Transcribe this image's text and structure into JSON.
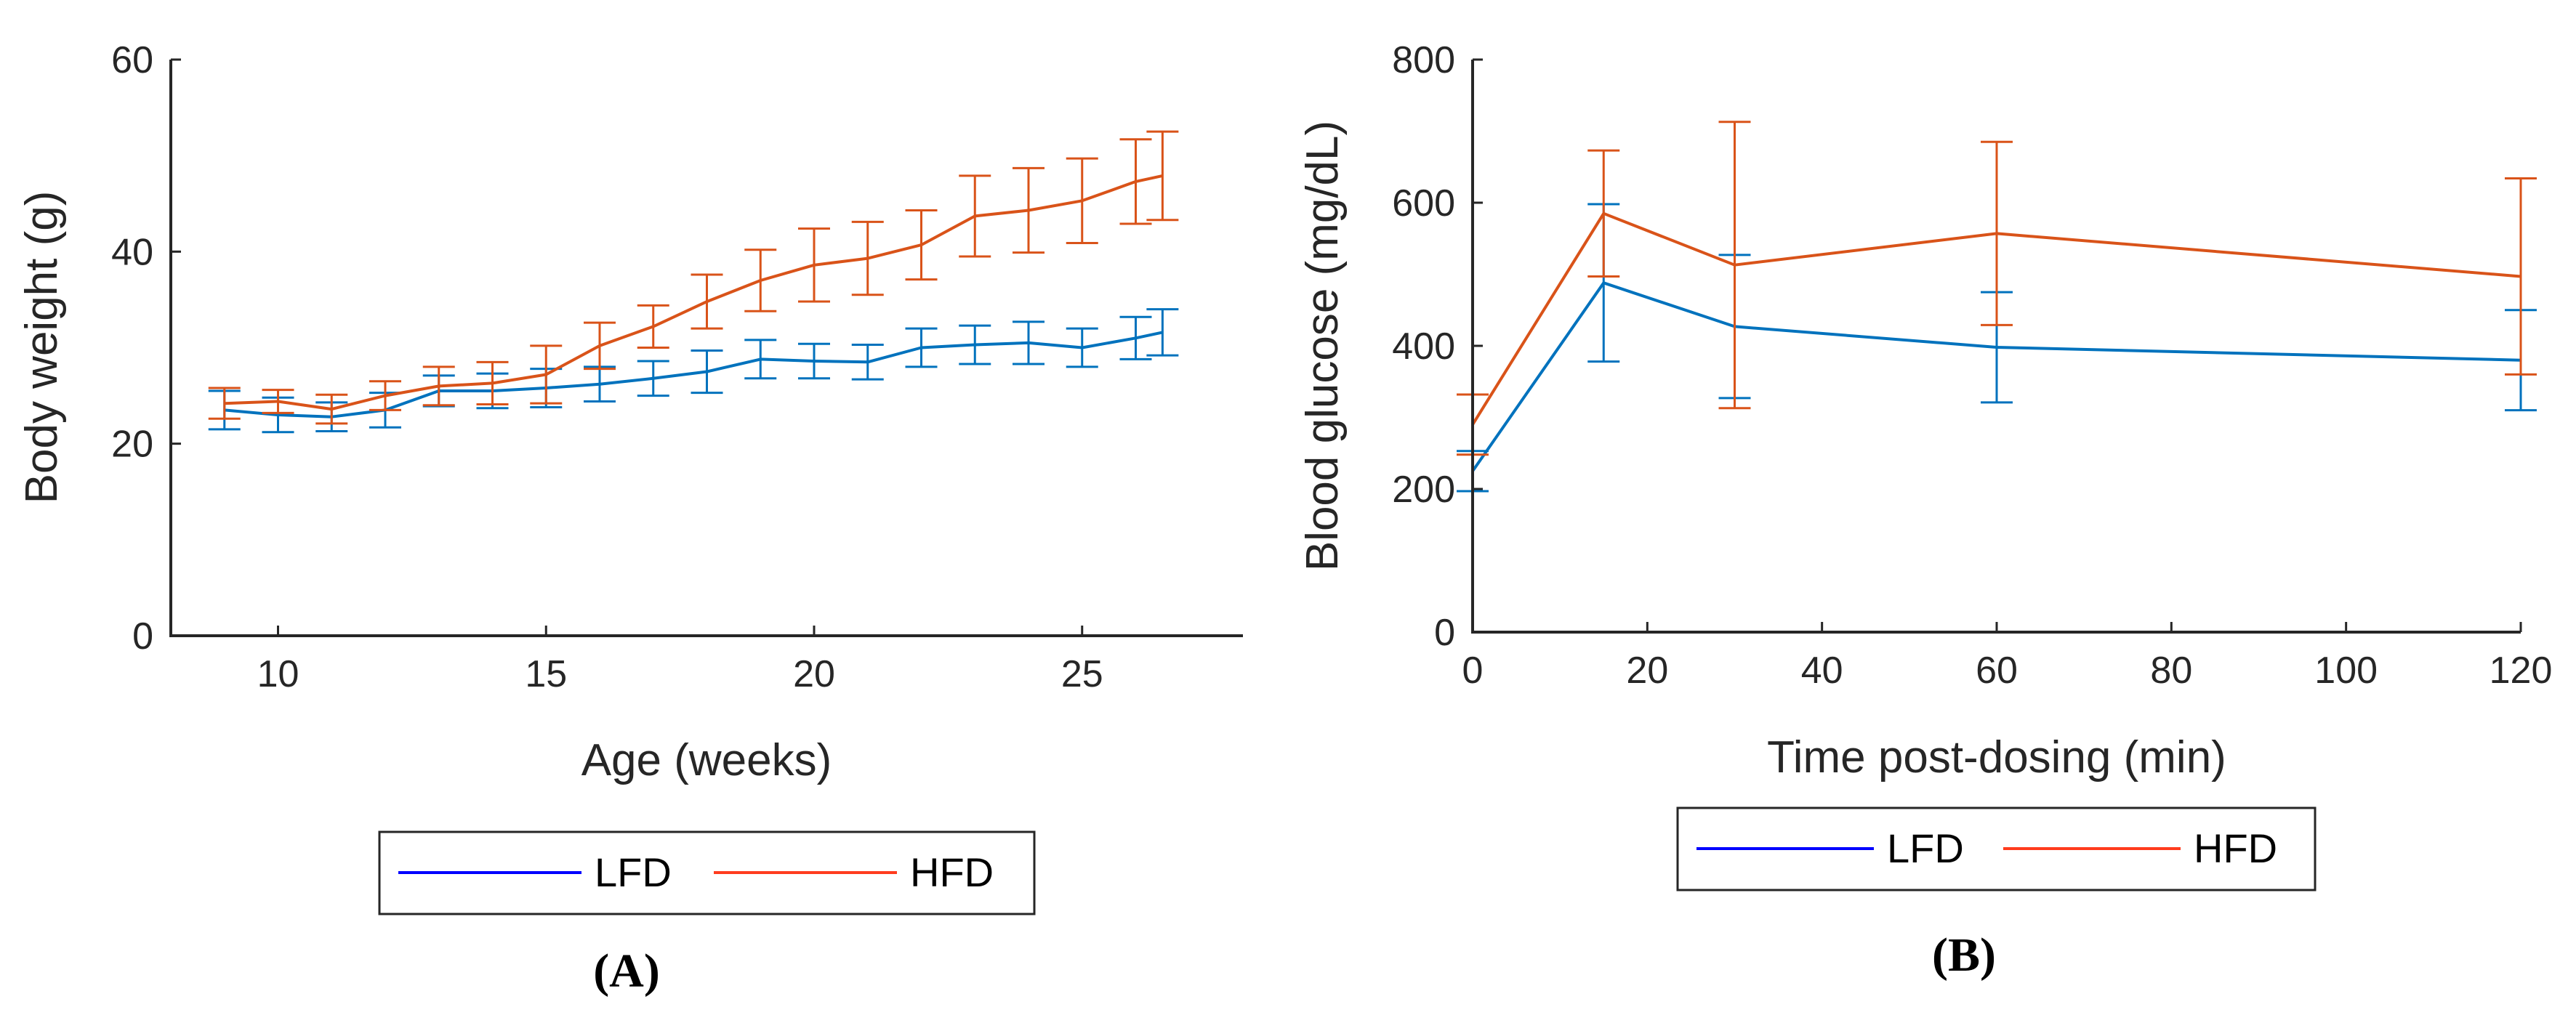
{
  "chart_data": [
    {
      "type": "line",
      "panel_label": "(A)",
      "xlabel": "Age (weeks)",
      "ylabel": "Body weight (g)",
      "xlim": [
        8,
        28
      ],
      "ylim": [
        0,
        60
      ],
      "xticks": [
        "10",
        "15",
        "20",
        "25"
      ],
      "yticks": [
        "0",
        "20",
        "40",
        "60"
      ],
      "grid": false,
      "legend": {
        "placement": "bottom-outside",
        "entries": [
          "LFD",
          "HFD"
        ]
      },
      "x": [
        9,
        10,
        11,
        12,
        13,
        14,
        15,
        16,
        17,
        18,
        19,
        20,
        21,
        22,
        23,
        24,
        25,
        26,
        26.5
      ],
      "series": [
        {
          "name": "LFD",
          "color": "#0072BD",
          "values": [
            23.5,
            23.0,
            22.8,
            23.5,
            25.5,
            25.5,
            25.8,
            26.2,
            26.8,
            27.5,
            28.8,
            28.6,
            28.5,
            30.0,
            30.3,
            30.5,
            30.0,
            31.0,
            31.6
          ],
          "errors": [
            2.0,
            1.8,
            1.5,
            1.8,
            1.6,
            1.8,
            2.0,
            1.8,
            1.8,
            2.2,
            2.0,
            1.8,
            1.8,
            2.0,
            2.0,
            2.2,
            2.0,
            2.2,
            2.4
          ]
        },
        {
          "name": "HFD",
          "color": "#D95319",
          "values": [
            24.2,
            24.4,
            23.6,
            25.0,
            26.0,
            26.3,
            27.2,
            30.2,
            32.2,
            34.8,
            37.0,
            38.6,
            39.3,
            40.7,
            43.7,
            44.3,
            45.3,
            47.3,
            47.9
          ],
          "errors": [
            1.6,
            1.2,
            1.5,
            1.5,
            2.0,
            2.2,
            3.0,
            2.4,
            2.2,
            2.8,
            3.2,
            3.8,
            3.8,
            3.6,
            4.2,
            4.4,
            4.4,
            4.4,
            4.6
          ]
        }
      ]
    },
    {
      "type": "line",
      "panel_label": "(B)",
      "xlabel": "Time post-dosing (min)",
      "ylabel": "Blood glucose (mg/dL)",
      "xlim": [
        0,
        120
      ],
      "ylim": [
        0,
        800
      ],
      "xticks": [
        "0",
        "20",
        "40",
        "60",
        "80",
        "100",
        "120"
      ],
      "yticks": [
        "0",
        "200",
        "400",
        "600",
        "800"
      ],
      "grid": false,
      "legend": {
        "placement": "bottom-outside",
        "entries": [
          "LFD",
          "HFD"
        ]
      },
      "x": [
        0,
        15,
        30,
        60,
        120
      ],
      "series": [
        {
          "name": "LFD",
          "color": "#0072BD",
          "values": [
            225,
            488,
            427,
            398,
            380
          ],
          "errors": [
            28,
            110,
            100,
            77,
            70
          ]
        },
        {
          "name": "HFD",
          "color": "#D95319",
          "values": [
            290,
            585,
            513,
            557,
            497
          ],
          "errors": [
            42,
            88,
            200,
            128,
            137
          ]
        }
      ]
    }
  ]
}
